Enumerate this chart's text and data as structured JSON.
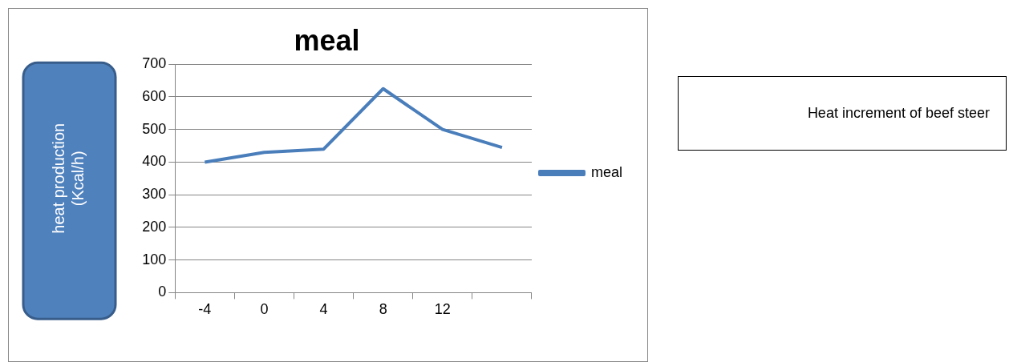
{
  "chart_data": {
    "type": "line",
    "title": "meal",
    "ylabel": "heat production (Kcal/h)",
    "categories": [
      "-4",
      "0",
      "4",
      "8",
      "12",
      null
    ],
    "series": [
      {
        "name": "meal",
        "color": "#4a7ebb",
        "values": [
          400,
          430,
          440,
          625,
          500,
          445
        ]
      }
    ],
    "ylim": [
      0,
      700
    ],
    "yticks": [
      0,
      100,
      200,
      300,
      400,
      500,
      600,
      700
    ],
    "grid": "y",
    "legend": "right",
    "marker": "none",
    "line_style": "solid",
    "annotations": [
      "Heat increment of beef steer"
    ]
  }
}
